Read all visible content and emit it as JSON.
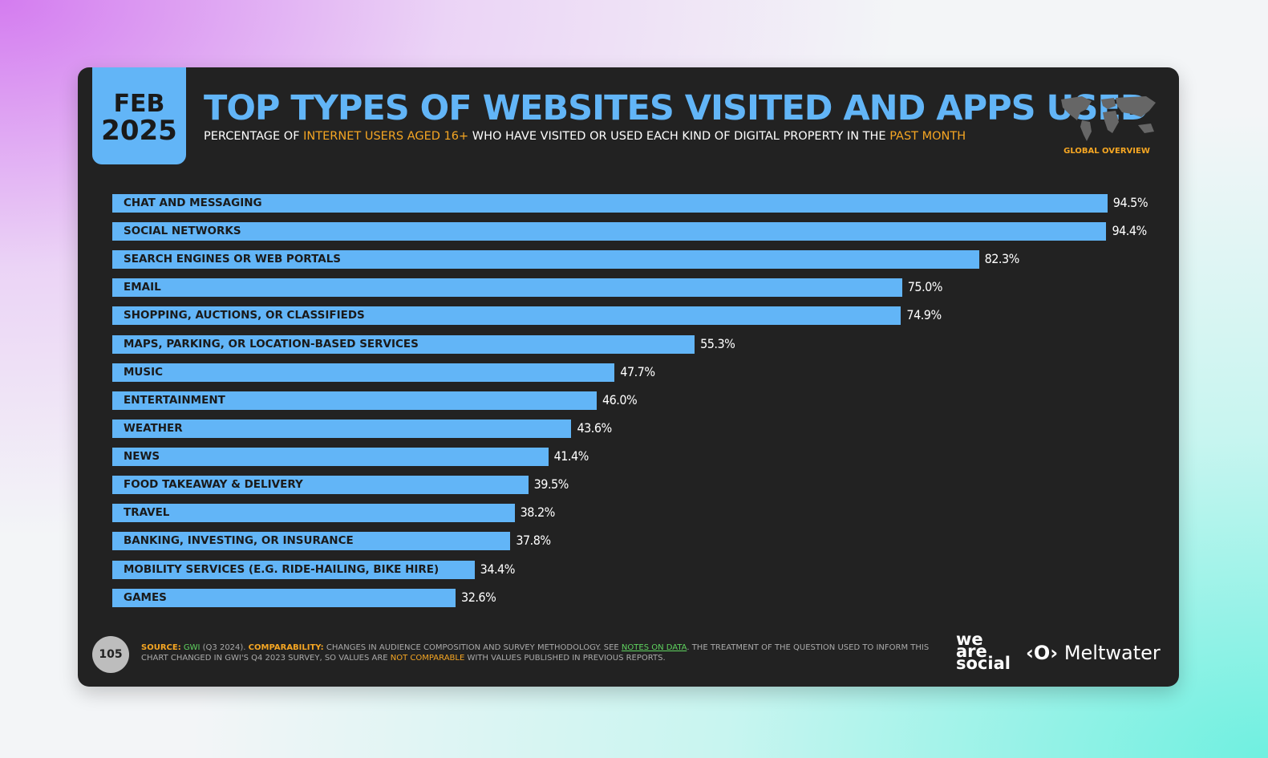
{
  "header": {
    "month": "FEB",
    "year": "2025",
    "region": "GLOBAL OVERVIEW"
  },
  "chart_data": {
    "type": "bar",
    "title": "TOP TYPES OF WEBSITES VISITED AND APPS USED",
    "subtitle_parts": [
      {
        "text": "PERCENTAGE OF ",
        "color": "#ffffff"
      },
      {
        "text": "INTERNET USERS AGED 16+",
        "color": "#f5a623"
      },
      {
        "text": " WHO HAVE VISITED OR USED EACH KIND OF DIGITAL PROPERTY IN THE ",
        "color": "#ffffff"
      },
      {
        "text": "PAST MONTH",
        "color": "#f5a623"
      }
    ],
    "categories": [
      "CHAT AND MESSAGING",
      "SOCIAL NETWORKS",
      "SEARCH ENGINES OR WEB PORTALS",
      "EMAIL",
      "SHOPPING, AUCTIONS, OR CLASSIFIEDS",
      "MAPS, PARKING, OR LOCATION-BASED SERVICES",
      "MUSIC",
      "ENTERTAINMENT",
      "WEATHER",
      "NEWS",
      "FOOD TAKEAWAY & DELIVERY",
      "TRAVEL",
      "BANKING, INVESTING, OR INSURANCE",
      "MOBILITY SERVICES (E.G. RIDE-HAILING, BIKE HIRE)",
      "GAMES"
    ],
    "values": [
      94.5,
      94.4,
      82.3,
      75.0,
      74.9,
      55.3,
      47.7,
      46.0,
      43.6,
      41.4,
      39.5,
      38.2,
      37.8,
      34.4,
      32.6
    ],
    "value_labels": [
      "94.5%",
      "94.4%",
      "82.3%",
      "75.0%",
      "74.9%",
      "55.3%",
      "47.7%",
      "46.0%",
      "43.6%",
      "41.4%",
      "39.5%",
      "38.2%",
      "37.8%",
      "34.4%",
      "32.6%"
    ],
    "color": "#62b5f7"
  },
  "footer": {
    "page": "105",
    "source_parts": [
      {
        "text": "SOURCE:",
        "color": "#f5a623",
        "bold": true
      },
      {
        "text": " GWI",
        "color": "#5fd35f"
      },
      {
        "text": " (Q3 2024). ",
        "color": "#aaaaaa"
      },
      {
        "text": "COMPARABILITY:",
        "color": "#f5a623",
        "bold": true
      },
      {
        "text": " CHANGES IN AUDIENCE COMPOSITION AND SURVEY METHODOLOGY. SEE ",
        "color": "#aaaaaa"
      },
      {
        "text": "NOTES ON DATA",
        "color": "#5fd35f"
      },
      {
        "text": ". THE TREATMENT OF THE QUESTION USED TO INFORM THIS CHART CHANGED IN GWI'S Q4 2023 SURVEY, SO VALUES ARE ",
        "color": "#aaaaaa"
      },
      {
        "text": "NOT COMPARABLE",
        "color": "#f5a623"
      },
      {
        "text": " WITH VALUES PUBLISHED IN PREVIOUS REPORTS.",
        "color": "#aaaaaa"
      }
    ],
    "logo_we_are_social": [
      "we",
      "are",
      "social"
    ],
    "logo_meltwater": "Meltwater"
  }
}
